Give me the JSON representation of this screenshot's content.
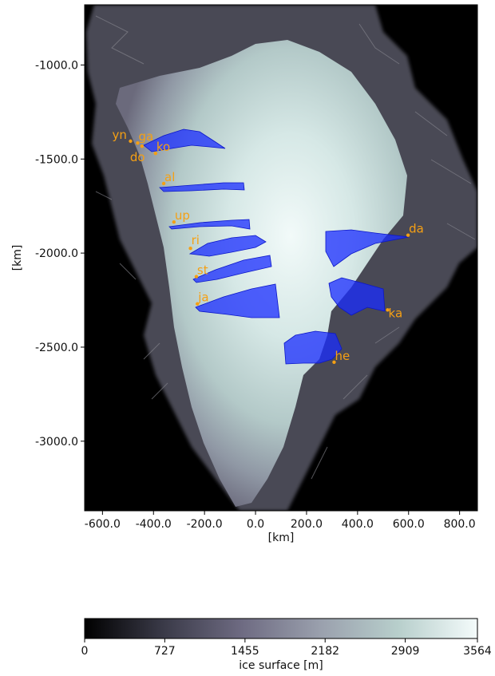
{
  "chart_data": {
    "type": "heatmap",
    "xlabel": "[km]",
    "ylabel": "[km]",
    "xlim": [
      -670,
      870
    ],
    "ylim": [
      -3370,
      -680
    ],
    "x_ticks": [
      "-600.0",
      "-400.0",
      "-200.0",
      "0.0",
      "200.0",
      "400.0",
      "600.0",
      "800.0"
    ],
    "y_ticks": [
      "-1000.0",
      "-1500.0",
      "-2000.0",
      "-2500.0",
      "-3000.0"
    ],
    "colorbar": {
      "label": "ice surface [m]",
      "min": 0,
      "max": 3564,
      "ticks": [
        "0",
        "727",
        "1455",
        "2182",
        "2909",
        "3564"
      ],
      "colors": [
        "#000000",
        "#3a3a48",
        "#6e6b82",
        "#9aa0ad",
        "#b8cfcc",
        "#f4fbfb"
      ]
    },
    "glacier_color": "#1a2cff",
    "label_color": "#f5a014",
    "glaciers": [
      {
        "name": "yn",
        "x": -490,
        "y": -1405
      },
      {
        "name": "ga",
        "x": -462,
        "y": -1415
      },
      {
        "name": "do",
        "x": -445,
        "y": -1432
      },
      {
        "name": "ko",
        "x": -392,
        "y": -1470
      },
      {
        "name": "al",
        "x": -360,
        "y": -1630
      },
      {
        "name": "up",
        "x": -320,
        "y": -1835
      },
      {
        "name": "ri",
        "x": -255,
        "y": -1975
      },
      {
        "name": "st",
        "x": -232,
        "y": -2125
      },
      {
        "name": "ja",
        "x": -228,
        "y": -2270
      },
      {
        "name": "da",
        "x": 598,
        "y": -1905
      },
      {
        "name": "ka",
        "x": 518,
        "y": -2302
      },
      {
        "name": "he",
        "x": 308,
        "y": -2580
      }
    ]
  }
}
